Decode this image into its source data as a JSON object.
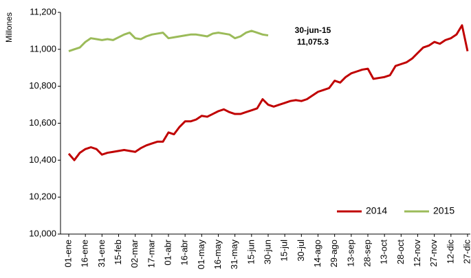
{
  "chart_data": {
    "type": "line",
    "y_label": "Millones",
    "annotation": {
      "date": "30-jun-15",
      "value": 11075.3,
      "value_label": "11,075.3"
    },
    "categories": [
      "01-ene",
      null,
      null,
      "16-ene",
      null,
      null,
      "31-ene",
      null,
      null,
      "15-feb",
      null,
      null,
      "02-mar",
      null,
      null,
      "17-mar",
      null,
      null,
      "01-abr",
      null,
      null,
      "16-abr",
      null,
      null,
      "01-may",
      null,
      null,
      "16-may",
      null,
      null,
      "31-may",
      null,
      null,
      "15-jun",
      null,
      null,
      "30-jun",
      null,
      null,
      "15-jul",
      null,
      null,
      "30-jul",
      null,
      null,
      "14-ago",
      null,
      null,
      "29-ago",
      null,
      null,
      "13-sep",
      null,
      null,
      "28-sep",
      null,
      null,
      "13-oct",
      null,
      null,
      "28-oct",
      null,
      null,
      "12-nov",
      null,
      null,
      "27-nov",
      null,
      null,
      "12-dic",
      null,
      null,
      "27-dic"
    ],
    "series": [
      {
        "name": "2014",
        "color": "#c00000",
        "values": [
          10435,
          10400,
          10440,
          10460,
          10470,
          10460,
          10430,
          10440,
          10445,
          10450,
          10455,
          10450,
          10445,
          10465,
          10480,
          10490,
          10500,
          10500,
          10550,
          10540,
          10580,
          10610,
          10610,
          10620,
          10640,
          10635,
          10650,
          10665,
          10675,
          10660,
          10650,
          10650,
          10660,
          10670,
          10680,
          10730,
          10700,
          10690,
          10700,
          10710,
          10720,
          10725,
          10720,
          10730,
          10750,
          10770,
          10780,
          10790,
          10830,
          10820,
          10850,
          10870,
          10880,
          10890,
          10895,
          10840,
          10845,
          10850,
          10860,
          10910,
          10920,
          10930,
          10950,
          10980,
          11010,
          11020,
          11040,
          11030,
          11050,
          11060,
          11080,
          11130,
          10990
        ]
      },
      {
        "name": "2015",
        "color": "#9bbb59",
        "values": [
          10990,
          11000,
          11010,
          11040,
          11060,
          11055,
          11050,
          11055,
          11050,
          11065,
          11080,
          11090,
          11060,
          11055,
          11070,
          11080,
          11085,
          11090,
          11060,
          11065,
          11070,
          11075,
          11080,
          11080,
          11075,
          11070,
          11085,
          11090,
          11085,
          11080,
          11060,
          11070,
          11090,
          11100,
          11090,
          11080,
          11075.3,
          null,
          null,
          null,
          null,
          null,
          null,
          null,
          null,
          null,
          null,
          null,
          null,
          null,
          null,
          null,
          null,
          null,
          null,
          null,
          null,
          null,
          null,
          null,
          null,
          null,
          null,
          null,
          null,
          null,
          null,
          null,
          null,
          null,
          null,
          null,
          null
        ]
      }
    ],
    "ylim": [
      10000,
      11200
    ],
    "yticks": [
      {
        "value": 10000,
        "label": "10,000"
      },
      {
        "value": 10200,
        "label": "10,200"
      },
      {
        "value": 10400,
        "label": "10,400"
      },
      {
        "value": 10600,
        "label": "10,600"
      },
      {
        "value": 10800,
        "label": "10,800"
      },
      {
        "value": 11000,
        "label": "11,000"
      },
      {
        "value": 11200,
        "label": "11,200"
      }
    ],
    "grid": false,
    "legend": "bottom-right"
  }
}
